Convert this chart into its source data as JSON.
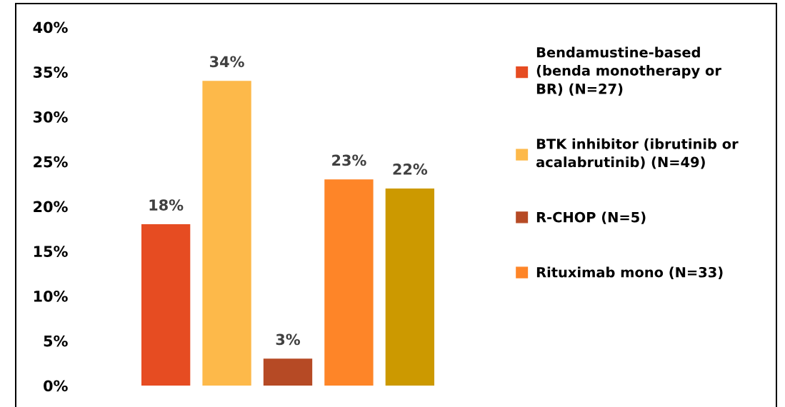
{
  "chart_data": {
    "type": "bar",
    "categories": [
      null,
      null,
      null,
      null,
      null
    ],
    "stacked": true,
    "series": [
      {
        "name": "Bendamustine-based (benda monotherapy or BR) (N=27)",
        "color": "#e64c22",
        "values": [
          18,
          null,
          null,
          null,
          null
        ],
        "value_labels": [
          "18%",
          null,
          null,
          null,
          null
        ]
      },
      {
        "name": "BTK inhibitor (ibrutinib or acalabrutinib) (N=49)",
        "color": "#fdb94a",
        "values": [
          null,
          34,
          null,
          null,
          null
        ],
        "value_labels": [
          null,
          "34%",
          null,
          null,
          null
        ]
      },
      {
        "name": "R-CHOP (N=5)",
        "color": "#b64a25",
        "values": [
          null,
          null,
          3,
          null,
          null
        ],
        "value_labels": [
          null,
          null,
          "3%",
          null,
          null
        ]
      },
      {
        "name": "Rituximab mono (N=33)",
        "color": "#fe8528",
        "values": [
          null,
          null,
          null,
          23,
          null
        ],
        "value_labels": [
          null,
          null,
          null,
          "23%",
          null
        ]
      },
      {
        "color": "#cc9900",
        "values": [
          null,
          null,
          null,
          null,
          22
        ],
        "value_labels": [
          null,
          null,
          null,
          null,
          "22%"
        ]
      }
    ],
    "ylim": [
      0,
      40
    ],
    "yticks": [
      {
        "value": 0,
        "label": "0%"
      },
      {
        "value": 5,
        "label": "5%"
      },
      {
        "value": 10,
        "label": "10%"
      },
      {
        "value": 15,
        "label": "15%"
      },
      {
        "value": 20,
        "label": "20%"
      },
      {
        "value": 25,
        "label": "25%"
      },
      {
        "value": 30,
        "label": "30%"
      },
      {
        "value": 35,
        "label": "35%"
      },
      {
        "value": 40,
        "label": "40%"
      }
    ],
    "tick_labels": "y",
    "grid": false,
    "legend": "right"
  }
}
